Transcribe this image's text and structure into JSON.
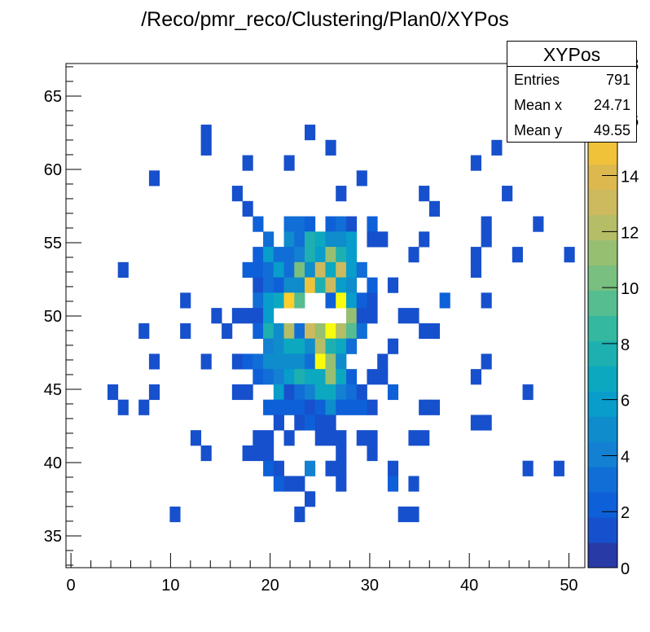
{
  "title": "/Reco/pmr_reco/Clustering/Plan0/XYPos",
  "stats": {
    "name": "XYPos",
    "rows": [
      {
        "label": "Entries",
        "value": "791"
      },
      {
        "label": "Mean x",
        "value": "24.71"
      },
      {
        "label": "Mean y",
        "value": "49.55"
      }
    ]
  },
  "chart_data": {
    "type": "heatmap",
    "title": "/Reco/pmr_reco/Clustering/Plan0/XYPos",
    "xlabel": "",
    "ylabel": "",
    "x_range": [
      -0.5,
      51.6
    ],
    "y_range": [
      32.83,
      67.22
    ],
    "nbins_x": 50,
    "nbins_y": 33,
    "z_range": [
      0,
      18
    ],
    "x_ticks": [
      0,
      10,
      20,
      30,
      40,
      50
    ],
    "y_ticks": [
      35,
      40,
      45,
      50,
      55,
      60,
      65
    ],
    "z_ticks": [
      0,
      2,
      4,
      6,
      8,
      10,
      12,
      14,
      16,
      18
    ],
    "palette": [
      "#283aa6",
      "#1750cc",
      "#0e60d8",
      "#116ed6",
      "#1380d2",
      "#0e8ccc",
      "#089dca",
      "#0ca8c0",
      "#1eb0b0",
      "#35b8a0",
      "#55bd90",
      "#78bf80",
      "#97bf72",
      "#b5bd67",
      "#cdb95e",
      "#dcb84f",
      "#f0c23a",
      "#fbcf2b",
      "#fde51c",
      "#f9fb0e"
    ],
    "cells_format": "[x_bin_index, y_bin_index, count]",
    "cells": [
      [
        13,
        28,
        1
      ],
      [
        23,
        28,
        1
      ],
      [
        13,
        27,
        1
      ],
      [
        25,
        27,
        1
      ],
      [
        41,
        27,
        1
      ],
      [
        17,
        26,
        1
      ],
      [
        21,
        26,
        1
      ],
      [
        39,
        26,
        1
      ],
      [
        8,
        25,
        1
      ],
      [
        28,
        25,
        1
      ],
      [
        16,
        24,
        1
      ],
      [
        26,
        24,
        1
      ],
      [
        34,
        24,
        1
      ],
      [
        42,
        24,
        1
      ],
      [
        17,
        23,
        1
      ],
      [
        35,
        23,
        1
      ],
      [
        18,
        22,
        2
      ],
      [
        21,
        22,
        3
      ],
      [
        22,
        22,
        3
      ],
      [
        23,
        22,
        2
      ],
      [
        25,
        22,
        2
      ],
      [
        26,
        22,
        3
      ],
      [
        27,
        22,
        1
      ],
      [
        29,
        22,
        2
      ],
      [
        40,
        22,
        1
      ],
      [
        45,
        22,
        1
      ],
      [
        19,
        21,
        3
      ],
      [
        21,
        21,
        5
      ],
      [
        22,
        21,
        3
      ],
      [
        23,
        21,
        8
      ],
      [
        24,
        21,
        7
      ],
      [
        25,
        21,
        5
      ],
      [
        26,
        21,
        5
      ],
      [
        27,
        21,
        6
      ],
      [
        29,
        21,
        1
      ],
      [
        30,
        21,
        1
      ],
      [
        34,
        21,
        1
      ],
      [
        40,
        21,
        1
      ],
      [
        18,
        20,
        2
      ],
      [
        19,
        20,
        6
      ],
      [
        20,
        20,
        3
      ],
      [
        21,
        20,
        3
      ],
      [
        22,
        20,
        4
      ],
      [
        23,
        20,
        8
      ],
      [
        24,
        20,
        6
      ],
      [
        25,
        20,
        11
      ],
      [
        26,
        20,
        8
      ],
      [
        27,
        20,
        6
      ],
      [
        33,
        20,
        1
      ],
      [
        39,
        20,
        1
      ],
      [
        43,
        20,
        1
      ],
      [
        48,
        20,
        1
      ],
      [
        5,
        19,
        1
      ],
      [
        17,
        19,
        2
      ],
      [
        18,
        19,
        2
      ],
      [
        19,
        19,
        3
      ],
      [
        20,
        19,
        6
      ],
      [
        21,
        19,
        3
      ],
      [
        22,
        19,
        10
      ],
      [
        23,
        19,
        5
      ],
      [
        24,
        19,
        13
      ],
      [
        25,
        19,
        7
      ],
      [
        26,
        19,
        13
      ],
      [
        27,
        19,
        6
      ],
      [
        28,
        19,
        3
      ],
      [
        39,
        19,
        1
      ],
      [
        18,
        18,
        1
      ],
      [
        19,
        18,
        3
      ],
      [
        20,
        18,
        2
      ],
      [
        21,
        18,
        5
      ],
      [
        22,
        18,
        5
      ],
      [
        23,
        18,
        15
      ],
      [
        24,
        18,
        8
      ],
      [
        25,
        18,
        13
      ],
      [
        26,
        18,
        6
      ],
      [
        27,
        18,
        5
      ],
      [
        29,
        18,
        2
      ],
      [
        31,
        18,
        1
      ],
      [
        11,
        17,
        1
      ],
      [
        18,
        17,
        3
      ],
      [
        19,
        17,
        6
      ],
      [
        20,
        17,
        7
      ],
      [
        21,
        17,
        16
      ],
      [
        22,
        17,
        9
      ],
      [
        25,
        17,
        2
      ],
      [
        26,
        17,
        18
      ],
      [
        27,
        17,
        6
      ],
      [
        28,
        17,
        2
      ],
      [
        29,
        17,
        1
      ],
      [
        36,
        17,
        2
      ],
      [
        40,
        17,
        1
      ],
      [
        14,
        16,
        1
      ],
      [
        16,
        16,
        1
      ],
      [
        17,
        16,
        1
      ],
      [
        18,
        16,
        1
      ],
      [
        19,
        16,
        6
      ],
      [
        27,
        16,
        11
      ],
      [
        28,
        16,
        1
      ],
      [
        29,
        16,
        1
      ],
      [
        32,
        16,
        1
      ],
      [
        33,
        16,
        1
      ],
      [
        7,
        15,
        1
      ],
      [
        11,
        15,
        1
      ],
      [
        15,
        15,
        1
      ],
      [
        18,
        15,
        2
      ],
      [
        19,
        15,
        8
      ],
      [
        20,
        15,
        5
      ],
      [
        21,
        15,
        12
      ],
      [
        22,
        15,
        3
      ],
      [
        23,
        15,
        13
      ],
      [
        24,
        15,
        11
      ],
      [
        25,
        15,
        18
      ],
      [
        26,
        15,
        12
      ],
      [
        27,
        15,
        9
      ],
      [
        28,
        15,
        3
      ],
      [
        34,
        15,
        1
      ],
      [
        35,
        15,
        1
      ],
      [
        19,
        14,
        4
      ],
      [
        20,
        14,
        5
      ],
      [
        21,
        14,
        7
      ],
      [
        22,
        14,
        7
      ],
      [
        23,
        14,
        5
      ],
      [
        24,
        14,
        12
      ],
      [
        25,
        14,
        8
      ],
      [
        26,
        14,
        7
      ],
      [
        27,
        14,
        3
      ],
      [
        31,
        14,
        1
      ],
      [
        8,
        13,
        1
      ],
      [
        13,
        13,
        1
      ],
      [
        16,
        13,
        1
      ],
      [
        17,
        13,
        2
      ],
      [
        18,
        13,
        3
      ],
      [
        19,
        13,
        5
      ],
      [
        20,
        13,
        5
      ],
      [
        21,
        13,
        5
      ],
      [
        22,
        13,
        5
      ],
      [
        23,
        13,
        3
      ],
      [
        24,
        13,
        18
      ],
      [
        25,
        13,
        11
      ],
      [
        26,
        13,
        5
      ],
      [
        30,
        13,
        1
      ],
      [
        40,
        13,
        1
      ],
      [
        18,
        12,
        2
      ],
      [
        19,
        12,
        3
      ],
      [
        20,
        12,
        4
      ],
      [
        21,
        12,
        6
      ],
      [
        22,
        12,
        8
      ],
      [
        23,
        12,
        7
      ],
      [
        24,
        12,
        7
      ],
      [
        25,
        12,
        11
      ],
      [
        26,
        12,
        7
      ],
      [
        27,
        12,
        2
      ],
      [
        29,
        12,
        1
      ],
      [
        30,
        12,
        1
      ],
      [
        39,
        12,
        1
      ],
      [
        4,
        11,
        1
      ],
      [
        8,
        11,
        1
      ],
      [
        16,
        11,
        1
      ],
      [
        17,
        11,
        1
      ],
      [
        20,
        11,
        6
      ],
      [
        21,
        11,
        1
      ],
      [
        22,
        11,
        3
      ],
      [
        23,
        11,
        4
      ],
      [
        24,
        11,
        7
      ],
      [
        25,
        11,
        7
      ],
      [
        26,
        11,
        4
      ],
      [
        27,
        11,
        3
      ],
      [
        28,
        11,
        1
      ],
      [
        31,
        11,
        2
      ],
      [
        44,
        11,
        1
      ],
      [
        5,
        10,
        1
      ],
      [
        7,
        10,
        1
      ],
      [
        19,
        10,
        2
      ],
      [
        20,
        10,
        2
      ],
      [
        21,
        10,
        2
      ],
      [
        22,
        10,
        2
      ],
      [
        23,
        10,
        1
      ],
      [
        24,
        10,
        2
      ],
      [
        25,
        10,
        5
      ],
      [
        26,
        10,
        2
      ],
      [
        27,
        10,
        2
      ],
      [
        28,
        10,
        2
      ],
      [
        29,
        10,
        1
      ],
      [
        34,
        10,
        1
      ],
      [
        35,
        10,
        1
      ],
      [
        20,
        9,
        1
      ],
      [
        22,
        9,
        1
      ],
      [
        23,
        9,
        2
      ],
      [
        24,
        9,
        1
      ],
      [
        25,
        9,
        1
      ],
      [
        39,
        9,
        1
      ],
      [
        40,
        9,
        1
      ],
      [
        12,
        8,
        1
      ],
      [
        18,
        8,
        1
      ],
      [
        19,
        8,
        1
      ],
      [
        21,
        8,
        1
      ],
      [
        24,
        8,
        1
      ],
      [
        25,
        8,
        1
      ],
      [
        26,
        8,
        1
      ],
      [
        28,
        8,
        1
      ],
      [
        29,
        8,
        1
      ],
      [
        33,
        8,
        1
      ],
      [
        34,
        8,
        1
      ],
      [
        13,
        7,
        1
      ],
      [
        17,
        7,
        1
      ],
      [
        18,
        7,
        1
      ],
      [
        19,
        7,
        1
      ],
      [
        26,
        7,
        1
      ],
      [
        29,
        7,
        1
      ],
      [
        19,
        6,
        2
      ],
      [
        20,
        6,
        1
      ],
      [
        23,
        6,
        4
      ],
      [
        25,
        6,
        1
      ],
      [
        26,
        6,
        1
      ],
      [
        31,
        6,
        1
      ],
      [
        44,
        6,
        1
      ],
      [
        47,
        6,
        1
      ],
      [
        20,
        5,
        2
      ],
      [
        21,
        5,
        1
      ],
      [
        22,
        5,
        1
      ],
      [
        26,
        5,
        1
      ],
      [
        31,
        5,
        2
      ],
      [
        33,
        5,
        1
      ],
      [
        23,
        4,
        1
      ],
      [
        10,
        3,
        1
      ],
      [
        22,
        3,
        1
      ],
      [
        32,
        3,
        1
      ],
      [
        33,
        3,
        1
      ]
    ],
    "grid": false,
    "colorbar": "right"
  }
}
